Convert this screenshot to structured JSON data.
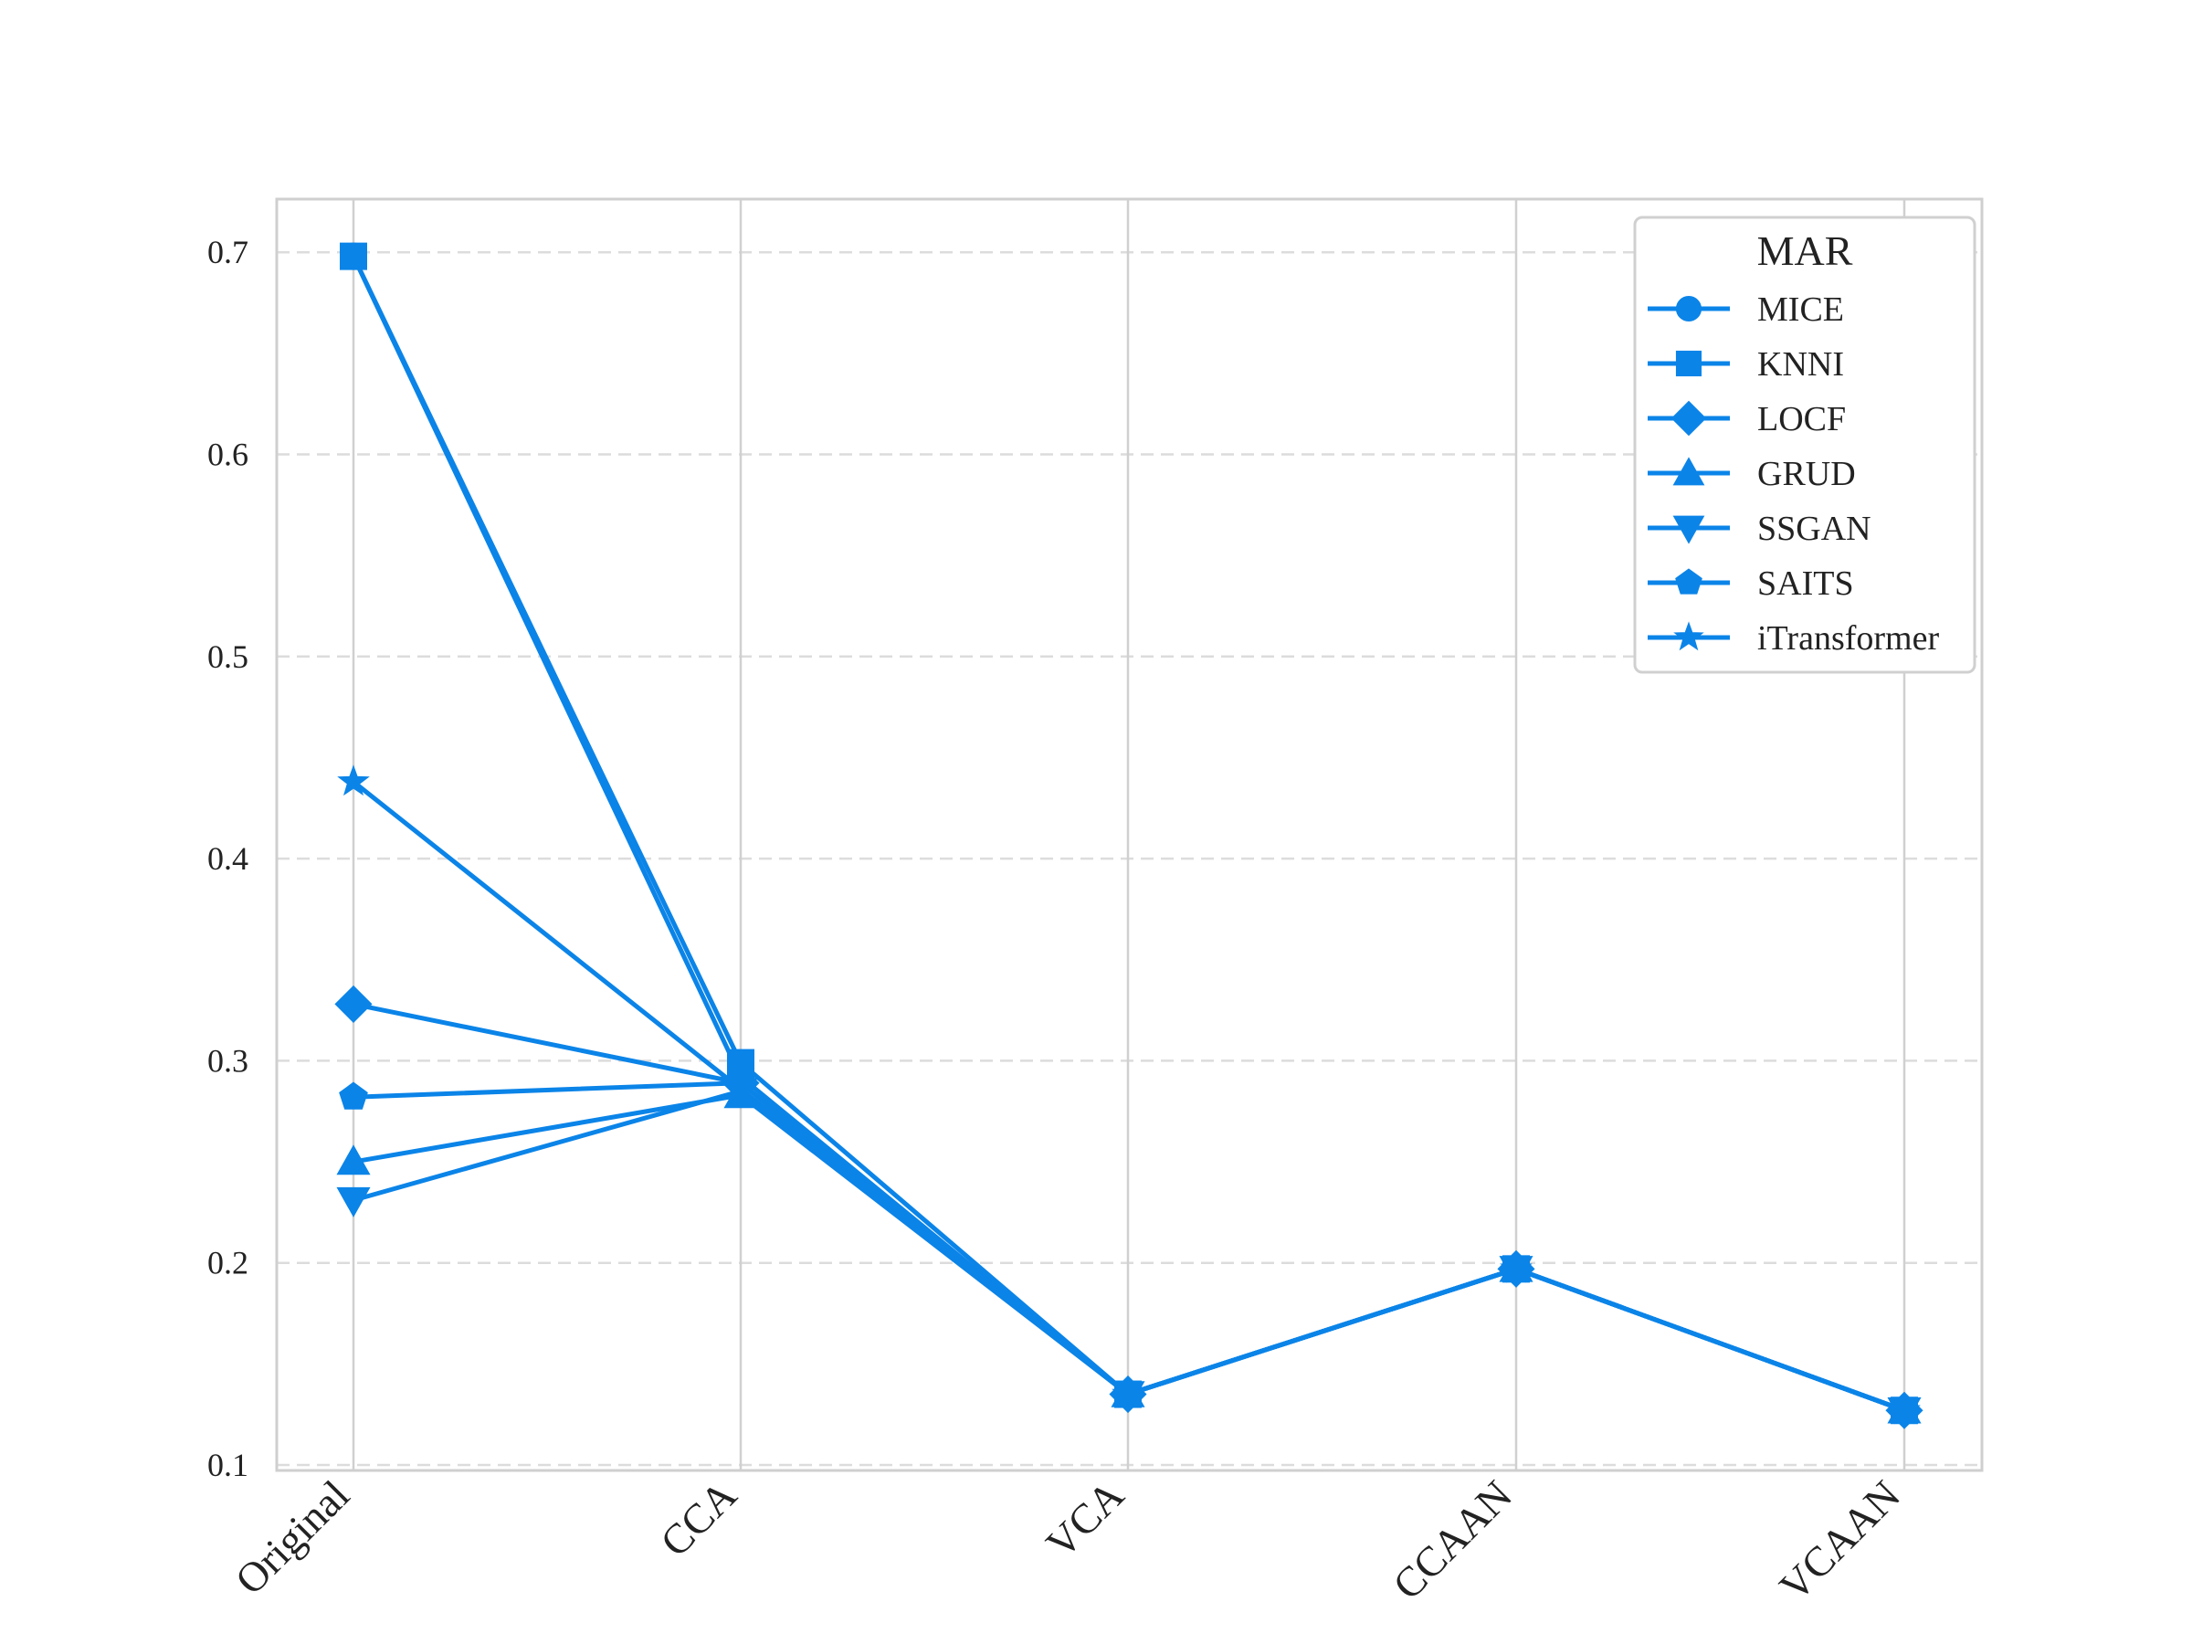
{
  "chart_data": {
    "type": "line",
    "categories": [
      "Original",
      "CCA",
      "VCA",
      "CCAAN",
      "VCAAN"
    ],
    "ylim": [
      0.1,
      0.73
    ],
    "yticks": [
      0.1,
      0.2,
      0.3,
      0.4,
      0.5,
      0.6,
      0.7
    ],
    "ytick_labels": [
      "0.1",
      "0.2",
      "0.3",
      "0.4",
      "0.5",
      "0.6",
      "0.7"
    ],
    "grid": "on",
    "legend_placement": "top-right",
    "legend_title": "MAR",
    "line_color": "#0b84e8",
    "series": [
      {
        "name": "MICE",
        "marker": "circle",
        "values": [
          0.698,
          0.292,
          0.135,
          0.197,
          0.127
        ]
      },
      {
        "name": "KNNI",
        "marker": "square",
        "values": [
          0.698,
          0.299,
          0.135,
          0.197,
          0.127
        ]
      },
      {
        "name": "LOCF",
        "marker": "diamond",
        "values": [
          0.328,
          0.289,
          0.135,
          0.197,
          0.127
        ]
      },
      {
        "name": "GRUD",
        "marker": "triangle-up",
        "values": [
          0.25,
          0.283,
          0.135,
          0.197,
          0.127
        ]
      },
      {
        "name": "SSGAN",
        "marker": "triangle-down",
        "values": [
          0.231,
          0.285,
          0.135,
          0.197,
          0.127
        ]
      },
      {
        "name": "SAITS",
        "marker": "pentagon",
        "values": [
          0.282,
          0.289,
          0.135,
          0.197,
          0.127
        ]
      },
      {
        "name": "iTransformer",
        "marker": "star",
        "values": [
          0.438,
          0.286,
          0.135,
          0.197,
          0.127
        ]
      }
    ]
  }
}
